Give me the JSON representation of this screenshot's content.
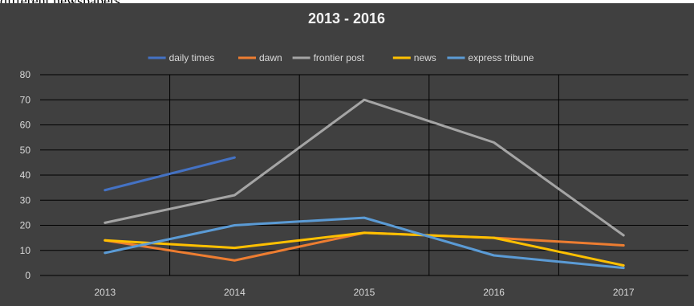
{
  "caption": "different newspapers",
  "chart_data": {
    "type": "line",
    "title": "2013 - 2016",
    "xlabel": "",
    "ylabel": "",
    "categories": [
      "2013",
      "2014",
      "2015",
      "2016",
      "2017"
    ],
    "ylim": [
      0,
      80
    ],
    "yticks": [
      0,
      10,
      20,
      30,
      40,
      50,
      60,
      70,
      80
    ],
    "grid": true,
    "legend_position": "top",
    "series": [
      {
        "name": "daily times",
        "color": "#4472c4",
        "values": [
          34,
          47,
          null,
          null,
          null
        ]
      },
      {
        "name": "dawn",
        "color": "#ed7d31",
        "values": [
          14,
          6,
          17,
          15,
          12
        ]
      },
      {
        "name": "frontier post",
        "color": "#a5a5a5",
        "values": [
          21,
          32,
          70,
          53,
          16
        ]
      },
      {
        "name": "news",
        "color": "#ffc000",
        "values": [
          14,
          11,
          17,
          15,
          4
        ]
      },
      {
        "name": "express tribune",
        "color": "#5b9bd5",
        "values": [
          9,
          20,
          23,
          8,
          3
        ]
      }
    ]
  }
}
